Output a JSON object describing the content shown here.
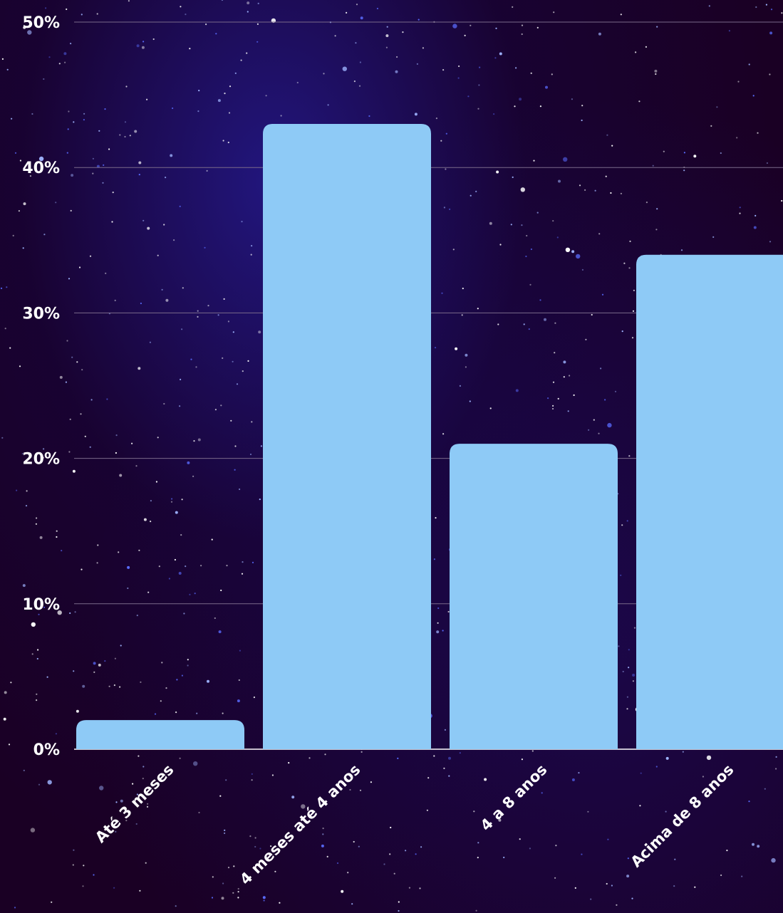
{
  "chart_data": {
    "type": "bar",
    "title": "",
    "xlabel": "",
    "ylabel": "",
    "categories": [
      "Até 3 meses",
      "4 meses até 4 anos",
      "4 a 8 anos",
      "Acima de 8 anos"
    ],
    "values": [
      2,
      43,
      21,
      34
    ],
    "ylim": [
      0,
      50
    ],
    "yticks": [
      0,
      10,
      20,
      30,
      40,
      50
    ],
    "ytick_labels": [
      "0%",
      "10%",
      "20%",
      "30%",
      "40%",
      "50%"
    ],
    "grid": true,
    "bar_color": "#8ecaf6",
    "grid_color": "#7a6a8a",
    "background_color": "#1a0024"
  }
}
